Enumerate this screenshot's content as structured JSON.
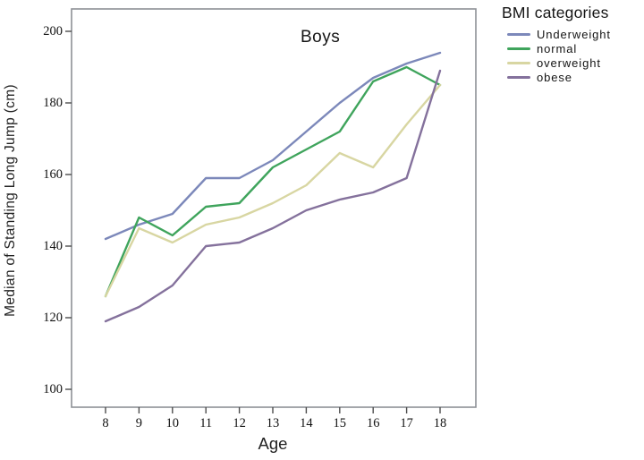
{
  "figure": {
    "title": "Boys",
    "x_axis_title": "Age",
    "y_axis_title": "Median of Standing Long Jump (cm)"
  },
  "legend": {
    "title": "BMI categories",
    "items": [
      {
        "label": "Underweight",
        "color": "#7c88ba"
      },
      {
        "label": "normal",
        "color": "#3fa45c"
      },
      {
        "label": "overweight",
        "color": "#d8d6a2"
      },
      {
        "label": "obese",
        "color": "#84719c"
      }
    ]
  },
  "chart_data": {
    "type": "line",
    "title": "Boys",
    "xlabel": "Age",
    "ylabel": "Median of Standing Long Jump (cm)",
    "x": [
      8,
      9,
      10,
      11,
      12,
      13,
      14,
      15,
      16,
      17,
      18
    ],
    "xticks": [
      8,
      9,
      10,
      11,
      12,
      13,
      14,
      15,
      16,
      17,
      18
    ],
    "yticks": [
      100,
      120,
      140,
      160,
      180,
      200
    ],
    "ylim": [
      95,
      206
    ],
    "xlim": [
      7,
      19
    ],
    "grid": false,
    "legend_title": "BMI categories",
    "legend_position": "outside-top-right",
    "frame_color": "#8d9196",
    "tick_color": "#4d4d4d",
    "series": [
      {
        "name": "Underweight",
        "color": "#7c88ba",
        "values": [
          142,
          146,
          149,
          159,
          159,
          164,
          172,
          180,
          187,
          191,
          194
        ]
      },
      {
        "name": "normal",
        "color": "#3fa45c",
        "values": [
          126,
          148,
          143,
          151,
          152,
          162,
          167,
          172,
          186,
          190,
          185
        ]
      },
      {
        "name": "overweight",
        "color": "#d8d6a2",
        "values": [
          126,
          145,
          141,
          146,
          148,
          152,
          157,
          166,
          162,
          174,
          185
        ]
      },
      {
        "name": "obese",
        "color": "#84719c",
        "values": [
          119,
          123,
          129,
          140,
          141,
          145,
          150,
          153,
          155,
          159,
          189
        ]
      }
    ]
  }
}
